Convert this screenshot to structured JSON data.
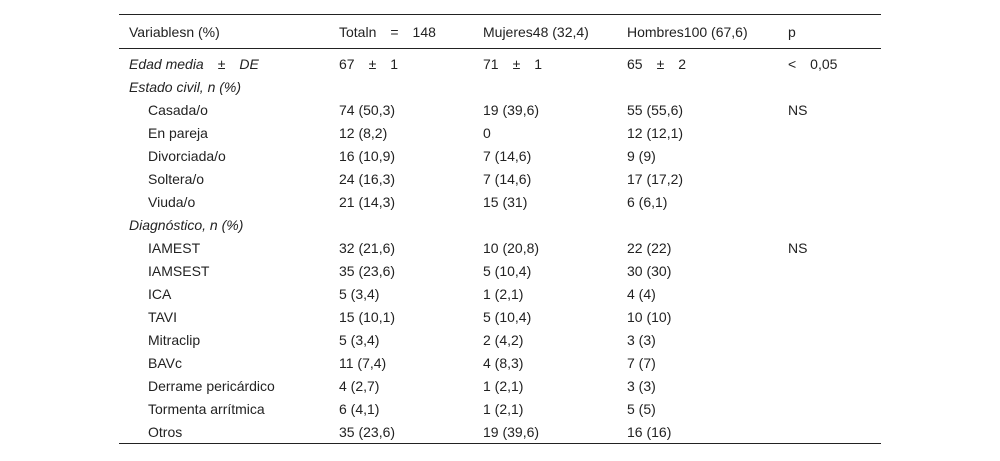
{
  "header": {
    "variables": "Variablesn (%)",
    "total": "Totaln  =  148",
    "women": "Mujeres48 (32,4)",
    "men": "Hombres100 (67,6)",
    "p": "p"
  },
  "rows": [
    {
      "label": "Edad media  ±  DE",
      "total": "67  ±  1",
      "women": "71  ±  1",
      "men": "65  ±  2",
      "p": "<  0,05"
    },
    {
      "label": "Estado civil, n (%)",
      "total": "",
      "women": "",
      "men": "",
      "p": ""
    },
    {
      "label": "Casada/o",
      "total": "74 (50,3)",
      "women": "19 (39,6)",
      "men": "55 (55,6)",
      "p": "NS"
    },
    {
      "label": "En pareja",
      "total": "12 (8,2)",
      "women": "0",
      "men": "12 (12,1)",
      "p": ""
    },
    {
      "label": "Divorciada/o",
      "total": "16 (10,9)",
      "women": "7 (14,6)",
      "men": "9 (9)",
      "p": ""
    },
    {
      "label": "Soltera/o",
      "total": "24 (16,3)",
      "women": "7 (14,6)",
      "men": "17 (17,2)",
      "p": ""
    },
    {
      "label": "Viuda/o",
      "total": "21 (14,3)",
      "women": "15 (31)",
      "men": "6 (6,1)",
      "p": ""
    },
    {
      "label": "Diagnóstico, n (%)",
      "total": "",
      "women": "",
      "men": "",
      "p": ""
    },
    {
      "label": "IAMEST",
      "total": "32 (21,6)",
      "women": "10 (20,8)",
      "men": "22 (22)",
      "p": "NS"
    },
    {
      "label": "IAMSEST",
      "total": "35 (23,6)",
      "women": "5 (10,4)",
      "men": "30 (30)",
      "p": ""
    },
    {
      "label": "ICA",
      "total": "5 (3,4)",
      "women": "1 (2,1)",
      "men": "4 (4)",
      "p": ""
    },
    {
      "label": "TAVI",
      "total": "15 (10,1)",
      "women": "5 (10,4)",
      "men": "10 (10)",
      "p": ""
    },
    {
      "label": "Mitraclip",
      "total": "5 (3,4)",
      "women": "2 (4,2)",
      "men": "3 (3)",
      "p": ""
    },
    {
      "label": "BAVc",
      "total": "11 (7,4)",
      "women": "4 (8,3)",
      "men": "7 (7)",
      "p": ""
    },
    {
      "label": "Derrame pericárdico",
      "total": "4 (2,7)",
      "women": "1 (2,1)",
      "men": "3 (3)",
      "p": ""
    },
    {
      "label": "Tormenta arrítmica",
      "total": "6 (4,1)",
      "women": "1 (2,1)",
      "men": "5 (5)",
      "p": ""
    },
    {
      "label": "Otros",
      "total": "35 (23,6)",
      "women": "19 (39,6)",
      "men": "16 (16)",
      "p": ""
    }
  ]
}
